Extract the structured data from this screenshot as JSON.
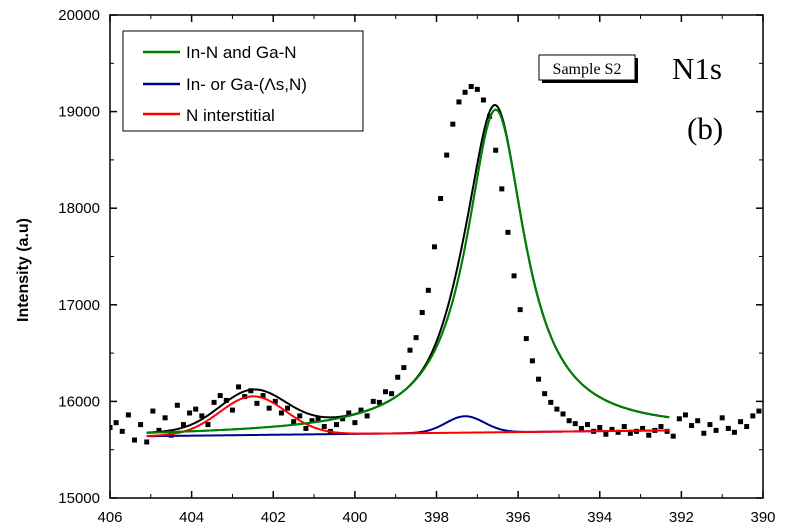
{
  "chart_data": {
    "type": "line",
    "xlabel": "",
    "ylabel": "Intensity (a.u)",
    "xlim": [
      406,
      390
    ],
    "ylim": [
      15000,
      20000
    ],
    "x_ticks": [
      406,
      404,
      402,
      400,
      398,
      396,
      394,
      392,
      390
    ],
    "y_ticks": [
      15000,
      16000,
      17000,
      18000,
      19000,
      20000
    ],
    "annotations": {
      "sample": "Sample S2",
      "peak": "N1s",
      "panel": "(b)"
    },
    "legend": {
      "placement": "top-left",
      "entries": [
        {
          "label": "In-N and Ga-N",
          "color": "#008000"
        },
        {
          "label": "In- or Ga-(Λs,N)",
          "color": "#00008b"
        },
        {
          "label": "N interstitial",
          "color": "#ff0000"
        }
      ]
    },
    "fit_range": [
      405.1,
      392.3
    ],
    "background": {
      "start": 15640,
      "end": 15700
    },
    "components": [
      {
        "label": "In-N and Ga-N",
        "color": "#008000",
        "center": 396.55,
        "amplitude": 3340,
        "fwhm": 1.75,
        "shape": "lorentzian"
      },
      {
        "label": "In- or Ga-(Λs,N)",
        "color": "#00008b",
        "center": 397.3,
        "amplitude": 170,
        "fwhm": 1.1,
        "shape": "gaussian"
      },
      {
        "label": "N interstitial",
        "color": "#ff0000",
        "center": 402.5,
        "amplitude": 400,
        "fwhm": 1.9,
        "shape": "gaussian"
      }
    ],
    "envelope_color": "#000000",
    "scatter": {
      "x": [
        406.0,
        405.85,
        405.7,
        405.55,
        405.4,
        405.25,
        405.1,
        404.95,
        404.8,
        404.65,
        404.5,
        404.35,
        404.2,
        404.05,
        403.9,
        403.75,
        403.6,
        403.45,
        403.3,
        403.15,
        403.0,
        402.85,
        402.7,
        402.55,
        402.4,
        402.25,
        402.1,
        401.95,
        401.8,
        401.65,
        401.5,
        401.35,
        401.2,
        401.05,
        400.9,
        400.75,
        400.6,
        400.45,
        400.3,
        400.15,
        400.0,
        399.85,
        399.7,
        399.55,
        399.4,
        399.25,
        399.1,
        398.95,
        398.8,
        398.65,
        398.5,
        398.35,
        398.2,
        398.05,
        397.9,
        397.75,
        397.6,
        397.45,
        397.3,
        397.15,
        397.0,
        396.85,
        396.7,
        396.55,
        396.4,
        396.25,
        396.1,
        395.95,
        395.8,
        395.65,
        395.5,
        395.35,
        395.2,
        395.05,
        394.9,
        394.75,
        394.6,
        394.45,
        394.3,
        394.15,
        394.0,
        393.85,
        393.7,
        393.55,
        393.4,
        393.25,
        393.1,
        392.95,
        392.8,
        392.65,
        392.5,
        392.35,
        392.2,
        392.05,
        391.9,
        391.75,
        391.6,
        391.45,
        391.3,
        391.15,
        391.0,
        390.85,
        390.7,
        390.55,
        390.4,
        390.25,
        390.1
      ],
      "y": [
        15730,
        15780,
        15690,
        15860,
        15600,
        15760,
        15580,
        15900,
        15700,
        15830,
        15650,
        15960,
        15760,
        15880,
        15920,
        15850,
        15760,
        15990,
        16060,
        16010,
        15910,
        16150,
        16050,
        16110,
        15980,
        16060,
        15930,
        16000,
        15880,
        15930,
        15790,
        15850,
        15720,
        15800,
        15820,
        15740,
        15690,
        15760,
        15820,
        15880,
        15780,
        15910,
        15850,
        16000,
        15990,
        16100,
        16080,
        16250,
        16350,
        16530,
        16660,
        16920,
        17150,
        17600,
        18100,
        18550,
        18870,
        19100,
        19200,
        19260,
        19230,
        19120,
        18950,
        18600,
        18200,
        17750,
        17300,
        16950,
        16650,
        16420,
        16230,
        16080,
        15990,
        15920,
        15870,
        15800,
        15770,
        15720,
        15760,
        15690,
        15730,
        15660,
        15710,
        15680,
        15740,
        15670,
        15690,
        15720,
        15650,
        15700,
        15740,
        15690,
        15640,
        15820,
        15860,
        15750,
        15800,
        15670,
        15760,
        15700,
        15830,
        15720,
        15680,
        15790,
        15740,
        15850,
        15900
      ]
    }
  }
}
